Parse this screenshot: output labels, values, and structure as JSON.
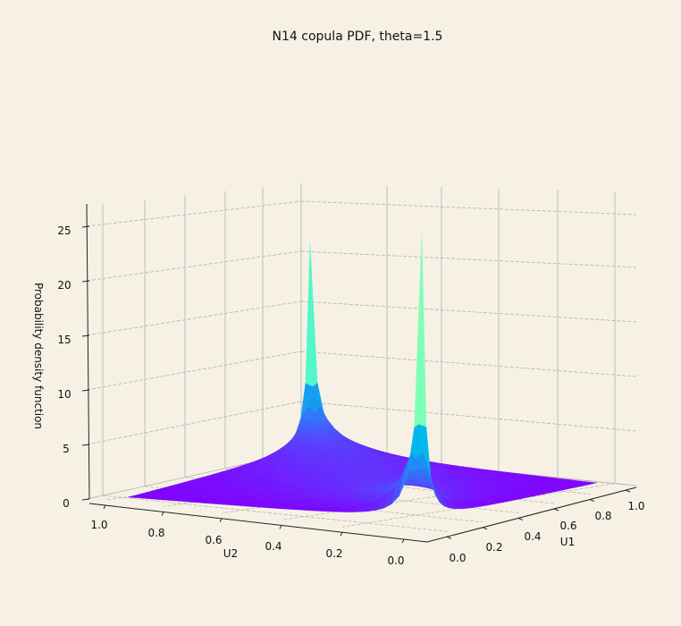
{
  "chart_data": {
    "type": "surface",
    "title": "N14 copula PDF, theta=1.5",
    "family": "N14",
    "theta": 1.5,
    "xlabel": "U1",
    "ylabel": "U2",
    "zlabel": "Probability density function",
    "x_ticks": [
      "0.0",
      "0.2",
      "0.4",
      "0.6",
      "0.8",
      "1.0"
    ],
    "y_ticks": [
      "1.0",
      "0.8",
      "0.6",
      "0.4",
      "0.2",
      "0.0"
    ],
    "z_ticks": [
      "0",
      "5",
      "10",
      "15",
      "20",
      "25"
    ],
    "x_range": [
      0.01,
      0.99
    ],
    "y_range": [
      0.01,
      0.99
    ],
    "zlim": [
      0,
      27
    ],
    "colormap": "rainbow",
    "grid": true
  },
  "colors": {
    "background": "#f6f1e4",
    "grid": "#b0b0b0",
    "axis": "#222222"
  }
}
